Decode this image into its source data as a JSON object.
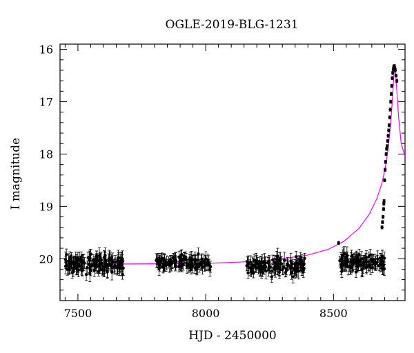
{
  "chart_data": {
    "type": "scatter",
    "title": "OGLE-2019-BLG-1231",
    "xlabel": "HJD - 2450000",
    "ylabel": "I magnitude",
    "xlim": [
      7430,
      8780
    ],
    "ylim": [
      20.8,
      15.9
    ],
    "y_inverted": true,
    "grid": false,
    "x_ticks": [
      7500,
      8000,
      8500
    ],
    "y_ticks": [
      16,
      17,
      18,
      19,
      20
    ],
    "colors": {
      "data": "#000000",
      "model": "#ff00ff"
    },
    "baseline_mag": 20.1,
    "seasons": [
      {
        "x_range": [
          7450,
          7680
        ],
        "mag_mean": 20.1,
        "mag_scatter": 0.22,
        "error": 0.12,
        "n_points": 150
      },
      {
        "x_range": [
          7800,
          8020
        ],
        "mag_mean": 20.08,
        "mag_scatter": 0.18,
        "error": 0.11,
        "n_points": 110
      },
      {
        "x_range": [
          8160,
          8390
        ],
        "mag_mean": 20.12,
        "mag_scatter": 0.2,
        "error": 0.12,
        "n_points": 120
      },
      {
        "x_range": [
          8520,
          8700
        ],
        "mag_mean": 20.08,
        "mag_scatter": 0.18,
        "error": 0.12,
        "n_points": 110
      }
    ],
    "rise_points": [
      {
        "x": 8520,
        "y": 19.7
      },
      {
        "x": 8690,
        "y": 19.4
      },
      {
        "x": 8692,
        "y": 19.3
      },
      {
        "x": 8694,
        "y": 19.2
      },
      {
        "x": 8696,
        "y": 19.05
      },
      {
        "x": 8697,
        "y": 18.95
      },
      {
        "x": 8698,
        "y": 18.9
      },
      {
        "x": 8700,
        "y": 18.5
      },
      {
        "x": 8702,
        "y": 18.3
      },
      {
        "x": 8704,
        "y": 18.15
      },
      {
        "x": 8706,
        "y": 18.0
      },
      {
        "x": 8708,
        "y": 17.9
      },
      {
        "x": 8710,
        "y": 17.85
      },
      {
        "x": 8712,
        "y": 17.75
      },
      {
        "x": 8714,
        "y": 17.65
      },
      {
        "x": 8716,
        "y": 17.55
      },
      {
        "x": 8718,
        "y": 17.45
      },
      {
        "x": 8720,
        "y": 17.3
      },
      {
        "x": 8722,
        "y": 17.15
      },
      {
        "x": 8724,
        "y": 17.0
      },
      {
        "x": 8726,
        "y": 16.85
      },
      {
        "x": 8728,
        "y": 16.7
      },
      {
        "x": 8730,
        "y": 16.55
      },
      {
        "x": 8732,
        "y": 16.45
      },
      {
        "x": 8734,
        "y": 16.38
      },
      {
        "x": 8736,
        "y": 16.33
      },
      {
        "x": 8738,
        "y": 16.32
      },
      {
        "x": 8740,
        "y": 16.35
      },
      {
        "x": 8742,
        "y": 16.4
      },
      {
        "x": 8745,
        "y": 16.5
      },
      {
        "x": 8748,
        "y": 16.6
      }
    ],
    "model_curve": [
      {
        "x": 7450,
        "y": 20.1
      },
      {
        "x": 7700,
        "y": 20.1
      },
      {
        "x": 8000,
        "y": 20.09
      },
      {
        "x": 8200,
        "y": 20.05
      },
      {
        "x": 8300,
        "y": 20.0
      },
      {
        "x": 8400,
        "y": 19.93
      },
      {
        "x": 8480,
        "y": 19.82
      },
      {
        "x": 8540,
        "y": 19.67
      },
      {
        "x": 8600,
        "y": 19.42
      },
      {
        "x": 8640,
        "y": 19.15
      },
      {
        "x": 8670,
        "y": 18.85
      },
      {
        "x": 8690,
        "y": 18.55
      },
      {
        "x": 8705,
        "y": 18.2
      },
      {
        "x": 8715,
        "y": 17.85
      },
      {
        "x": 8725,
        "y": 17.35
      },
      {
        "x": 8732,
        "y": 16.85
      },
      {
        "x": 8737,
        "y": 16.45
      },
      {
        "x": 8740,
        "y": 16.32
      },
      {
        "x": 8743,
        "y": 16.42
      },
      {
        "x": 8748,
        "y": 16.8
      },
      {
        "x": 8755,
        "y": 17.3
      },
      {
        "x": 8765,
        "y": 17.8
      },
      {
        "x": 8780,
        "y": 18.05
      }
    ]
  }
}
